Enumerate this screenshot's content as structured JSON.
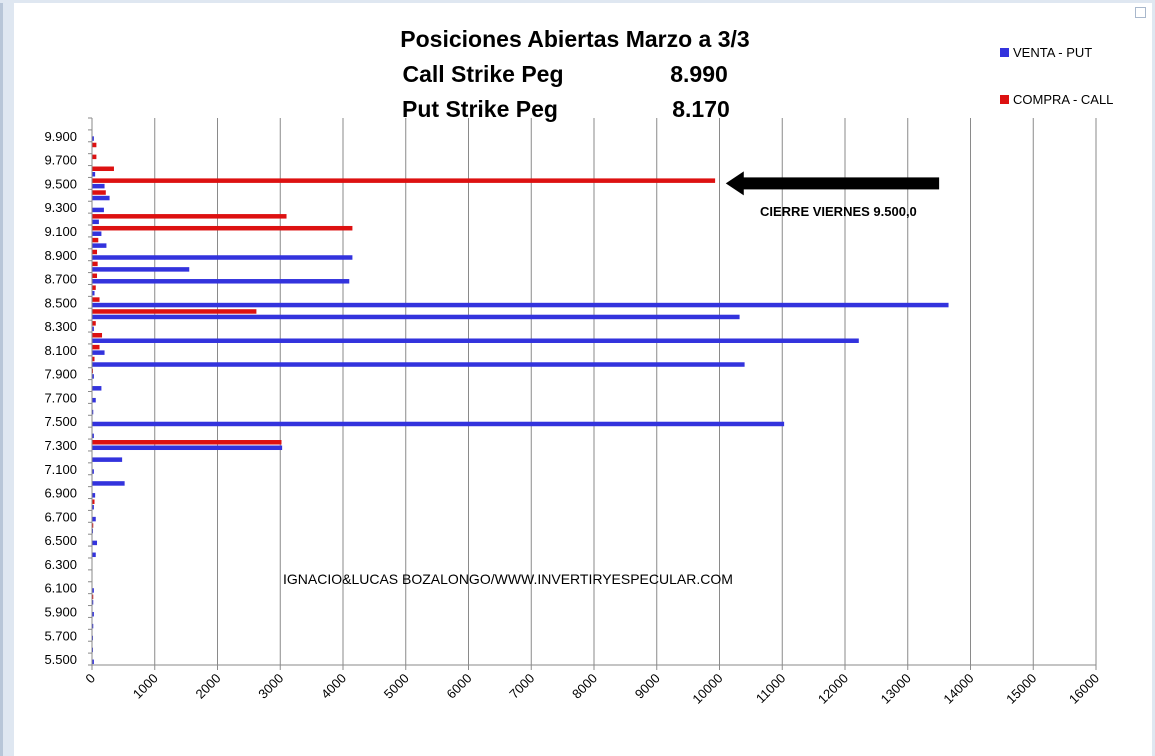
{
  "chart_data": {
    "type": "bar",
    "orientation": "horizontal",
    "title": [
      "Posiciones Abiertas Marzo a 3/3"
    ],
    "subtitles": [
      {
        "label": "Call Strike Peg",
        "value": "8.990"
      },
      {
        "label": "Put Strike Peg",
        "value": "8.170"
      }
    ],
    "xlim": [
      0,
      16000
    ],
    "x_ticks": [
      0,
      1000,
      2000,
      3000,
      4000,
      5000,
      6000,
      7000,
      8000,
      9000,
      10000,
      11000,
      12000,
      13000,
      14000,
      15000,
      16000
    ],
    "grid": "vertical",
    "legend_position": "top-right",
    "categories": [
      5500,
      5600,
      5700,
      5800,
      5900,
      6000,
      6100,
      6200,
      6300,
      6400,
      6500,
      6600,
      6700,
      6800,
      6900,
      7000,
      7100,
      7200,
      7300,
      7400,
      7500,
      7600,
      7700,
      7800,
      7900,
      8000,
      8100,
      8200,
      8300,
      8400,
      8500,
      8600,
      8700,
      8800,
      8900,
      9000,
      9100,
      9200,
      9300,
      9400,
      9500,
      9600,
      9700,
      9800,
      9900,
      10000
    ],
    "category_labels": [
      "5.500",
      "",
      "5.700",
      "",
      "5.900",
      "",
      "6.100",
      "",
      "6.300",
      "",
      "6.500",
      "",
      "6.700",
      "",
      "6.900",
      "",
      "7.100",
      "",
      "7.300",
      "",
      "7.500",
      "",
      "7.700",
      "",
      "7.900",
      "",
      "8.100",
      "",
      "8.300",
      "",
      "8.500",
      "",
      "8.700",
      "",
      "8.900",
      "",
      "9.100",
      "",
      "9.300",
      "",
      "9.500",
      "",
      "9.700",
      "",
      "9.900",
      ""
    ],
    "series": [
      {
        "name": "VENTA - PUT",
        "color": "#3333dd",
        "values": [
          30,
          10,
          10,
          20,
          30,
          20,
          30,
          0,
          0,
          60,
          80,
          10,
          60,
          30,
          50,
          520,
          30,
          480,
          3030,
          30,
          11030,
          20,
          60,
          150,
          30,
          10400,
          200,
          12220,
          30,
          10320,
          13650,
          40,
          4100,
          1550,
          4150,
          230,
          150,
          110,
          190,
          280,
          200,
          50,
          0,
          0,
          30,
          0
        ]
      },
      {
        "name": "COMPRA - CALL",
        "color": "#dd1111",
        "values": [
          0,
          0,
          0,
          0,
          0,
          20,
          0,
          0,
          0,
          0,
          0,
          20,
          0,
          40,
          0,
          0,
          0,
          0,
          3020,
          0,
          0,
          0,
          0,
          0,
          10,
          40,
          120,
          160,
          60,
          2620,
          120,
          60,
          80,
          90,
          80,
          100,
          4150,
          3100,
          0,
          220,
          9930,
          350,
          70,
          70,
          0,
          0
        ]
      }
    ],
    "annotations": [
      {
        "text": "CIERRE VIERNES  9.500,0",
        "arrow_from_value": 13500,
        "arrow_to_value": 10100,
        "category": 9500
      }
    ],
    "credit": "IGNACIO&LUCAS BOZALONGO/WWW.INVERTIRYESPECULAR.COM"
  }
}
